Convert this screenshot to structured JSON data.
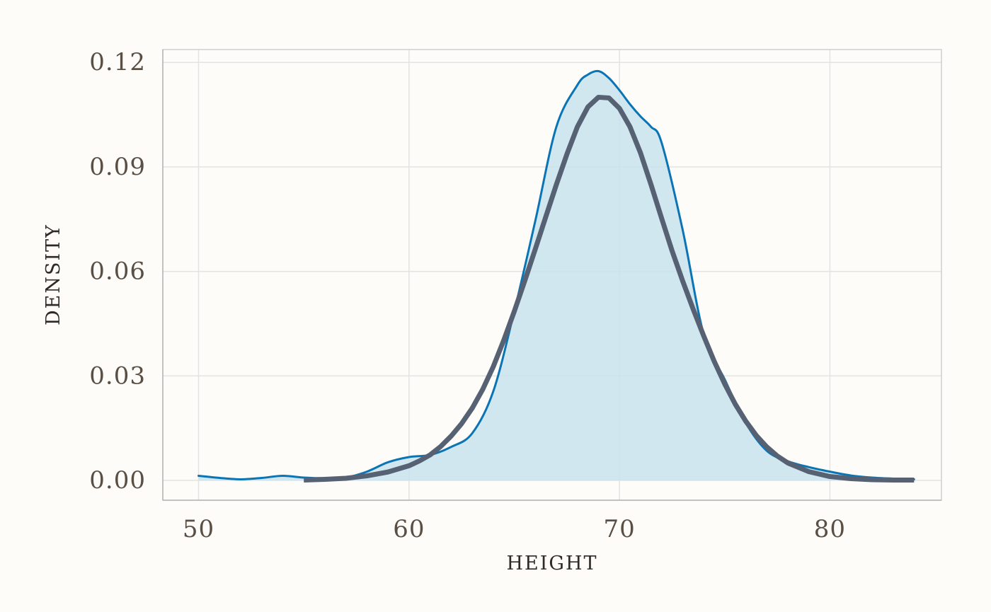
{
  "chart_data": {
    "type": "area",
    "xlabel": "HEIGHT",
    "ylabel": "DENSITY",
    "xlim": [
      48.3,
      85.3
    ],
    "ylim": [
      -0.0057,
      0.1237
    ],
    "x_ticks": [
      50,
      60,
      70,
      80
    ],
    "x_tick_labels": [
      "50",
      "60",
      "70",
      "80"
    ],
    "y_ticks": [
      0.0,
      0.03,
      0.06,
      0.09,
      0.12
    ],
    "y_tick_labels": [
      "0.00",
      "0.03",
      "0.06",
      "0.09",
      "0.12"
    ],
    "grid": true,
    "legend": "none",
    "series": [
      {
        "kind": "density-area",
        "color": "#0b74b5",
        "fill": "#c6e1ee",
        "x": [
          50,
          51,
          52,
          53,
          54,
          55,
          56,
          57,
          58,
          59,
          60,
          61,
          62,
          63,
          64,
          65,
          66,
          67,
          68,
          68.5,
          69,
          69.5,
          70,
          70.5,
          71,
          71.5,
          72,
          73,
          74,
          75,
          76,
          77,
          78,
          79,
          80,
          81,
          82,
          83,
          84
        ],
        "y": [
          0.0013,
          0.0007,
          0.0003,
          0.0007,
          0.0013,
          0.0008,
          0.0006,
          0.0008,
          0.0025,
          0.0052,
          0.0067,
          0.0073,
          0.0096,
          0.0135,
          0.0255,
          0.0485,
          0.0745,
          0.1015,
          0.1135,
          0.1165,
          0.1175,
          0.1155,
          0.112,
          0.108,
          0.1045,
          0.1015,
          0.097,
          0.072,
          0.042,
          0.029,
          0.0165,
          0.0085,
          0.0055,
          0.0038,
          0.0025,
          0.0014,
          0.0008,
          0.0005,
          0.0003
        ]
      },
      {
        "kind": "normal-fit",
        "color": "#566273",
        "x": [
          55,
          56,
          57,
          58,
          59,
          60,
          60.5,
          61,
          61.5,
          62,
          62.5,
          63,
          63.5,
          64,
          64.5,
          65,
          65.5,
          66,
          66.5,
          67,
          67.5,
          68,
          68.5,
          69,
          69.5,
          70,
          70.5,
          71,
          71.5,
          72,
          72.5,
          73,
          73.5,
          74,
          74.5,
          75,
          75.5,
          76,
          76.5,
          77,
          77.5,
          78,
          79,
          80,
          81,
          82,
          83,
          84
        ],
        "y": [
          0.0001,
          0.0003,
          0.0006,
          0.0013,
          0.0024,
          0.0042,
          0.0056,
          0.0073,
          0.0097,
          0.0127,
          0.0163,
          0.0207,
          0.0261,
          0.0326,
          0.0402,
          0.0485,
          0.0573,
          0.0664,
          0.0757,
          0.0849,
          0.0936,
          0.1015,
          0.1072,
          0.11,
          0.1098,
          0.1068,
          0.1015,
          0.094,
          0.0849,
          0.0753,
          0.0659,
          0.0573,
          0.0492,
          0.0415,
          0.0342,
          0.0277,
          0.0219,
          0.017,
          0.0129,
          0.0096,
          0.007,
          0.005,
          0.0025,
          0.0011,
          0.0005,
          0.0002,
          0.0001,
          0.0001
        ]
      }
    ]
  }
}
